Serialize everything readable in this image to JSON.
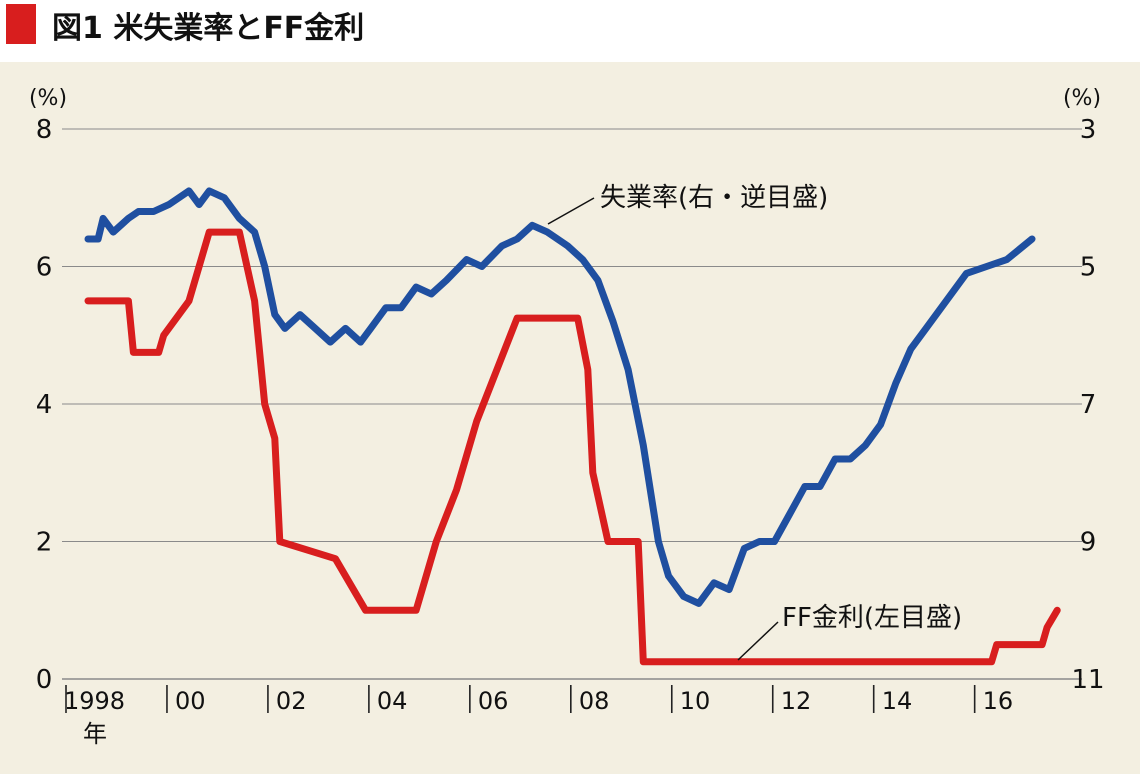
{
  "title": "図1 米失業率とFF金利",
  "colors": {
    "background": "#f3efe1",
    "title_marker": "#d81e1e",
    "ff_rate": "#d81e1e",
    "unemployment": "#1f4fa0",
    "grid": "#8a8a8a",
    "text": "#111111"
  },
  "chart_data": {
    "type": "line",
    "title": "図1 米失業率とFF金利",
    "x_ticks": [
      "1998",
      "00",
      "02",
      "04",
      "06",
      "08",
      "10",
      "12",
      "14",
      "16"
    ],
    "x_unit": "年",
    "xlim": [
      1998,
      2016.7
    ],
    "left_axis": {
      "unit": "(%)",
      "ticks": [
        "8",
        "6",
        "4",
        "2",
        "0"
      ],
      "range": [
        0,
        8
      ]
    },
    "right_axis": {
      "unit": "(%)",
      "ticks": [
        "3",
        "5",
        "7",
        "9",
        "11"
      ],
      "range": [
        11,
        3
      ],
      "inverted": true
    },
    "grid": true,
    "series": [
      {
        "name": "失業率(右・逆目盛)",
        "axis": "right",
        "x": [
          1998.0,
          1998.2,
          1998.3,
          1998.5,
          1998.8,
          1999.0,
          1999.3,
          1999.6,
          2000.0,
          2000.2,
          2000.4,
          2000.7,
          2001.0,
          2001.3,
          2001.5,
          2001.7,
          2001.9,
          2002.2,
          2002.5,
          2002.8,
          2003.1,
          2003.4,
          2003.6,
          2003.9,
          2004.2,
          2004.5,
          2004.8,
          2005.1,
          2005.5,
          2005.8,
          2006.2,
          2006.5,
          2006.8,
          2007.1,
          2007.5,
          2007.8,
          2008.1,
          2008.4,
          2008.7,
          2009.0,
          2009.3,
          2009.5,
          2009.8,
          2010.1,
          2010.4,
          2010.7,
          2011.0,
          2011.3,
          2011.6,
          2011.9,
          2012.2,
          2012.5,
          2012.8,
          2013.1,
          2013.4,
          2013.7,
          2014.0,
          2014.3,
          2014.6,
          2015.0,
          2015.4,
          2015.8,
          2016.2,
          2016.7
        ],
        "values": [
          4.6,
          4.6,
          4.3,
          4.5,
          4.3,
          4.2,
          4.2,
          4.1,
          3.9,
          4.1,
          3.9,
          4.0,
          4.3,
          4.5,
          5.0,
          5.7,
          5.9,
          5.7,
          5.9,
          6.1,
          5.9,
          6.1,
          5.9,
          5.6,
          5.6,
          5.3,
          5.4,
          5.2,
          4.9,
          5.0,
          4.7,
          4.6,
          4.4,
          4.5,
          4.7,
          4.9,
          5.2,
          5.8,
          6.5,
          7.6,
          9.0,
          9.5,
          9.8,
          9.9,
          9.6,
          9.7,
          9.1,
          9.0,
          9.0,
          8.6,
          8.2,
          8.2,
          7.8,
          7.8,
          7.6,
          7.3,
          6.7,
          6.2,
          5.9,
          5.5,
          5.1,
          5.0,
          4.9,
          4.6
        ]
      },
      {
        "name": "FF金利(左目盛)",
        "axis": "left",
        "x": [
          1998.0,
          1998.8,
          1998.9,
          1999.4,
          1999.5,
          2000.0,
          2000.4,
          2001.0,
          2001.3,
          2001.5,
          2001.7,
          2001.8,
          2002.9,
          2003.5,
          2004.5,
          2004.9,
          2005.3,
          2005.7,
          2006.1,
          2006.5,
          2007.7,
          2007.9,
          2008.0,
          2008.3,
          2008.9,
          2009.0,
          2015.9,
          2016.0,
          2016.9,
          2017.0,
          2017.2
        ],
        "values": [
          5.5,
          5.5,
          4.75,
          4.75,
          5.0,
          5.5,
          6.5,
          6.5,
          5.5,
          4.0,
          3.5,
          2.0,
          1.75,
          1.0,
          1.0,
          2.0,
          2.75,
          3.75,
          4.5,
          5.25,
          5.25,
          4.5,
          3.0,
          2.0,
          2.0,
          0.25,
          0.25,
          0.5,
          0.5,
          0.75,
          1.0
        ]
      }
    ]
  }
}
